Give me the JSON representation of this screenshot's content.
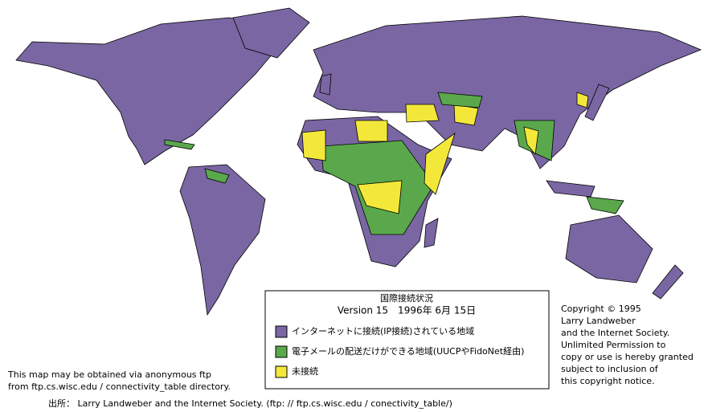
{
  "legend": {
    "title": "国際接続状況",
    "subtitle": "Version 15　1996年 6月 15日",
    "items": [
      {
        "label": "インターネットに接続(IP接続)されている地域",
        "color": "#7b66a4"
      },
      {
        "label": "電子メールの配送だけができる地域(UUCPやFidoNet経由)",
        "color": "#5aa84b"
      },
      {
        "label": "未接続",
        "color": "#f3e83a"
      }
    ]
  },
  "copyright": [
    "Copyright © 1995",
    "Larry Landweber",
    "and the Internet Society.",
    "Unlimited Permission to",
    "copy or use is hereby granted",
    "subject to inclusion of",
    "this copyright notice."
  ],
  "note": [
    "This map may be obtained via anonymous ftp",
    "from ftp.cs.wisc.edu / connectivity_table directory."
  ],
  "source": "出所： Larry Landweber and the Internet Society. (ftp: // ftp.cs.wisc.edu / conectivity_table/)"
}
